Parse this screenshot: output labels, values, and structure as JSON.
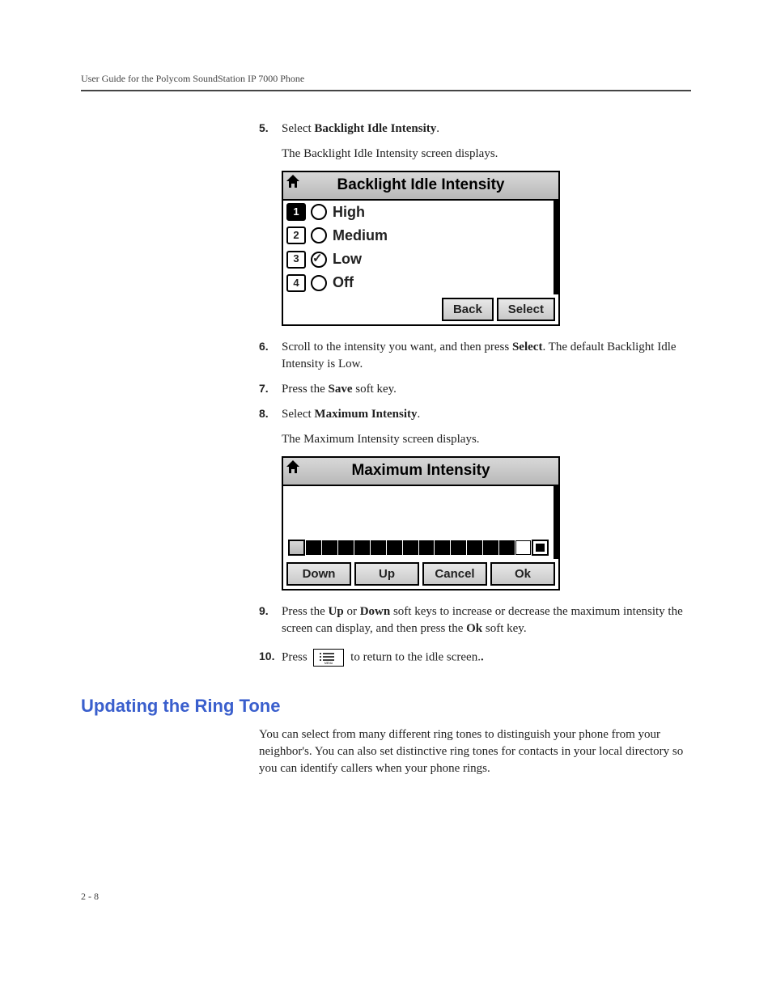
{
  "header": {
    "running": "User Guide for the Polycom SoundStation IP 7000 Phone"
  },
  "steps": {
    "s5": {
      "num": "5.",
      "text_pre": "Select ",
      "bold": "Backlight Idle Intensity",
      "text_post": "."
    },
    "s5_sub": "The Backlight Idle Intensity screen displays.",
    "s6": {
      "num": "6.",
      "text_pre": "Scroll to the intensity you want, and then press ",
      "bold": "Select",
      "text_post": ". The default Backlight Idle Intensity is Low."
    },
    "s7": {
      "num": "7.",
      "text_pre": "Press the ",
      "bold": "Save",
      "text_post": " soft key."
    },
    "s8": {
      "num": "8.",
      "text_pre": "Select ",
      "bold": "Maximum Intensity",
      "text_post": "."
    },
    "s8_sub": "The Maximum Intensity screen displays.",
    "s9": {
      "num": "9.",
      "text_pre": "Press the ",
      "bold1": "Up",
      "mid1": " or ",
      "bold2": "Down",
      "mid2": " soft keys to increase or decrease the maximum intensity the screen can display, and then press the ",
      "bold3": "Ok",
      "text_post": " soft key."
    },
    "s10": {
      "num": "10.",
      "text_pre": "Press ",
      "text_post": " to return to the idle screen."
    }
  },
  "screenshot1": {
    "title": "Backlight Idle Intensity",
    "items": [
      {
        "n": "1",
        "label": "High",
        "checked": false,
        "selected": true
      },
      {
        "n": "2",
        "label": "Medium",
        "checked": false,
        "selected": false
      },
      {
        "n": "3",
        "label": "Low",
        "checked": true,
        "selected": false
      },
      {
        "n": "4",
        "label": "Off",
        "checked": false,
        "selected": false
      }
    ],
    "btn_back": "Back",
    "btn_select": "Select"
  },
  "screenshot2": {
    "title": "Maximum Intensity",
    "slider_filled": 13,
    "slider_total": 16,
    "btn_down": "Down",
    "btn_up": "Up",
    "btn_cancel": "Cancel",
    "btn_ok": "Ok"
  },
  "section": {
    "heading": "Updating the Ring Tone",
    "para": "You can select from many different ring tones to distinguish your phone from your neighbor's. You can also set distinctive ring tones for contacts in your local directory so you can identify callers when your phone rings."
  },
  "footer": {
    "page_number": "2 - 8"
  },
  "colors": {
    "heading_blue": "#3a5fcd"
  }
}
